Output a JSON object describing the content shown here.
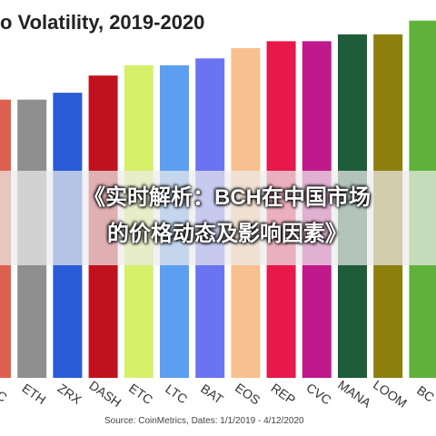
{
  "chart_data": {
    "type": "bar",
    "title": "o Volatility, 2019-2020",
    "categories": [
      "EC",
      "ETH",
      "ZRX",
      "DASH",
      "ETC",
      "LTC",
      "BAT",
      "EOS",
      "REP",
      "CVC",
      "MANA",
      "LOOM",
      "BC"
    ],
    "values": [
      81,
      81,
      83,
      88,
      91,
      91,
      93,
      96,
      98,
      98,
      100,
      100,
      104
    ],
    "colors": [
      "#e06050",
      "#8f8f8f",
      "#2a5bd7",
      "#c0121e",
      "#d6f06a",
      "#5c9ff0",
      "#6a73f2",
      "#f9c08f",
      "#e8184b",
      "#c0198b",
      "#1f5c3a",
      "#8d7f0c",
      "#5fb23a"
    ],
    "ylim": [
      0,
      110
    ],
    "grid": false,
    "source": "Source: CoinMetrics, Dates: 1/1/2019 - 4/12/2020"
  },
  "overlay": {
    "line1": "《实时解析：BCH在中国市场",
    "line2": "的价格动态及影响因素》"
  }
}
